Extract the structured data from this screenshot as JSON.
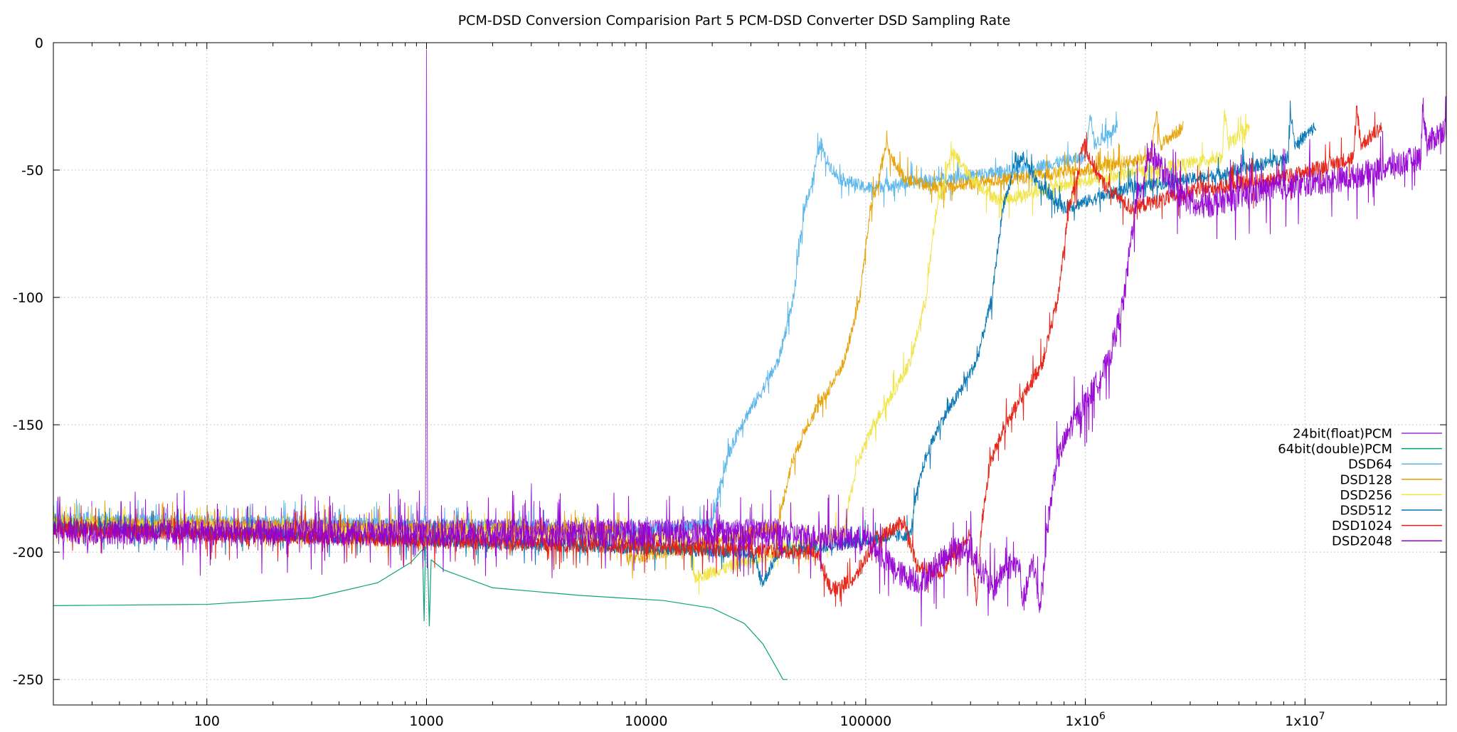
{
  "chart_data": {
    "type": "line",
    "title": "PCM-DSD Conversion Comparision Part 5 PCM-DSD Converter DSD Sampling Rate",
    "xlabel": "",
    "ylabel": "",
    "x_scale": "log",
    "xlim": [
      20,
      44000000
    ],
    "ylim": [
      -260,
      0
    ],
    "grid": true,
    "legend_position": "right, lower-middle",
    "x_ticks": [
      {
        "value": 100,
        "label": "100"
      },
      {
        "value": 1000,
        "label": "1000"
      },
      {
        "value": 10000,
        "label": "10000"
      },
      {
        "value": 100000,
        "label": "100000"
      },
      {
        "value": 1000000,
        "label": "1x10",
        "sup": "6"
      },
      {
        "value": 10000000,
        "label": "1x10",
        "sup": "7"
      }
    ],
    "y_ticks": [
      {
        "value": 0,
        "label": "0"
      },
      {
        "value": -50,
        "label": "-50"
      },
      {
        "value": -100,
        "label": "-100"
      },
      {
        "value": -150,
        "label": "-150"
      },
      {
        "value": -200,
        "label": "-200"
      },
      {
        "value": -250,
        "label": "-250"
      }
    ],
    "series": [
      {
        "name": "24bit(float)PCM",
        "color": "#9b30d9",
        "noise": 3,
        "points": [
          [
            20,
            -190
          ],
          [
            900,
            -190
          ],
          [
            990,
            -190
          ],
          [
            1000,
            0
          ],
          [
            1010,
            -190
          ],
          [
            2990,
            -190
          ],
          [
            3000,
            -163
          ],
          [
            3010,
            -190
          ],
          [
            20000,
            -190
          ],
          [
            40000,
            -190
          ]
        ]
      },
      {
        "name": "64bit(double)PCM",
        "color": "#009e73",
        "noise": 0,
        "points": [
          [
            20,
            -221
          ],
          [
            100,
            -220.5
          ],
          [
            300,
            -218
          ],
          [
            600,
            -212
          ],
          [
            850,
            -204
          ],
          [
            960,
            -199
          ],
          [
            975,
            -227
          ],
          [
            990,
            -198
          ],
          [
            1000,
            -198
          ],
          [
            1010,
            -199
          ],
          [
            1030,
            -229
          ],
          [
            1050,
            -203
          ],
          [
            1200,
            -207
          ],
          [
            2000,
            -214
          ],
          [
            5000,
            -217
          ],
          [
            12000,
            -219
          ],
          [
            20000,
            -222
          ],
          [
            28000,
            -228
          ],
          [
            34000,
            -236
          ],
          [
            39000,
            -245
          ],
          [
            42000,
            -250
          ],
          [
            44000,
            -250
          ]
        ]
      },
      {
        "name": "DSD64",
        "color": "#56b4e9",
        "noise": 2.5,
        "points": [
          [
            20,
            -187
          ],
          [
            4000,
            -190
          ],
          [
            4200,
            -195
          ],
          [
            20000,
            -189
          ],
          [
            21000,
            -180
          ],
          [
            23000,
            -165
          ],
          [
            27000,
            -150
          ],
          [
            33000,
            -138
          ],
          [
            40000,
            -125
          ],
          [
            47000,
            -100
          ],
          [
            50000,
            -80
          ],
          [
            53000,
            -63
          ],
          [
            57000,
            -55
          ],
          [
            60000,
            -45
          ],
          [
            62500,
            -39
          ],
          [
            65000,
            -45
          ],
          [
            75000,
            -53
          ],
          [
            100000,
            -57
          ],
          [
            200000,
            -54
          ],
          [
            500000,
            -50
          ],
          [
            1000000,
            -45
          ],
          [
            1050000,
            -27
          ],
          [
            1100000,
            -40
          ],
          [
            1400000,
            -33
          ]
        ]
      },
      {
        "name": "DSD128",
        "color": "#e69f00",
        "noise": 2.5,
        "points": [
          [
            20,
            -188
          ],
          [
            8000,
            -192
          ],
          [
            8200,
            -203
          ],
          [
            40000,
            -190
          ],
          [
            42000,
            -180
          ],
          [
            46000,
            -165
          ],
          [
            54000,
            -150
          ],
          [
            66000,
            -138
          ],
          [
            80000,
            -125
          ],
          [
            94000,
            -100
          ],
          [
            100000,
            -80
          ],
          [
            106000,
            -63
          ],
          [
            114000,
            -55
          ],
          [
            120000,
            -45
          ],
          [
            125000,
            -40
          ],
          [
            130000,
            -45
          ],
          [
            150000,
            -53
          ],
          [
            200000,
            -57
          ],
          [
            400000,
            -54
          ],
          [
            1000000,
            -50
          ],
          [
            2000000,
            -45
          ],
          [
            2100000,
            -27
          ],
          [
            2200000,
            -40
          ],
          [
            2800000,
            -33
          ]
        ]
      },
      {
        "name": "DSD256",
        "color": "#f0e442",
        "noise": 2.5,
        "points": [
          [
            20,
            -189
          ],
          [
            16000,
            -195
          ],
          [
            16500,
            -210
          ],
          [
            80000,
            -192
          ],
          [
            84000,
            -180
          ],
          [
            92000,
            -165
          ],
          [
            108000,
            -150
          ],
          [
            132000,
            -138
          ],
          [
            160000,
            -125
          ],
          [
            188000,
            -100
          ],
          [
            200000,
            -80
          ],
          [
            212000,
            -63
          ],
          [
            228000,
            -55
          ],
          [
            240000,
            -45
          ],
          [
            250000,
            -44
          ],
          [
            260000,
            -45
          ],
          [
            300000,
            -53
          ],
          [
            400000,
            -62
          ],
          [
            800000,
            -56
          ],
          [
            2000000,
            -50
          ],
          [
            4200000,
            -45
          ],
          [
            4300000,
            -27
          ],
          [
            4500000,
            -40
          ],
          [
            5600000,
            -33
          ]
        ]
      },
      {
        "name": "DSD512",
        "color": "#0072b2",
        "noise": 2.5,
        "points": [
          [
            20,
            -190
          ],
          [
            30000,
            -200
          ],
          [
            34000,
            -212
          ],
          [
            40000,
            -200
          ],
          [
            160000,
            -193
          ],
          [
            168000,
            -180
          ],
          [
            184000,
            -165
          ],
          [
            216000,
            -150
          ],
          [
            264000,
            -138
          ],
          [
            320000,
            -125
          ],
          [
            376000,
            -100
          ],
          [
            400000,
            -80
          ],
          [
            424000,
            -63
          ],
          [
            456000,
            -55
          ],
          [
            480000,
            -45
          ],
          [
            500000,
            -47
          ],
          [
            520000,
            -45
          ],
          [
            600000,
            -55
          ],
          [
            800000,
            -65
          ],
          [
            1600000,
            -57
          ],
          [
            4000000,
            -52
          ],
          [
            8400000,
            -45
          ],
          [
            8600000,
            -27
          ],
          [
            9000000,
            -40
          ],
          [
            11200000,
            -33
          ]
        ]
      },
      {
        "name": "DSD1024",
        "color": "#e51e10",
        "noise": 3,
        "points": [
          [
            20,
            -191
          ],
          [
            60000,
            -200
          ],
          [
            70000,
            -215
          ],
          [
            90000,
            -210
          ],
          [
            110000,
            -195
          ],
          [
            150000,
            -188
          ],
          [
            170000,
            -205
          ],
          [
            220000,
            -208
          ],
          [
            300000,
            -193
          ],
          [
            320000,
            -220
          ],
          [
            336000,
            -190
          ],
          [
            368000,
            -165
          ],
          [
            432000,
            -150
          ],
          [
            528000,
            -138
          ],
          [
            640000,
            -125
          ],
          [
            752000,
            -100
          ],
          [
            800000,
            -80
          ],
          [
            848000,
            -63
          ],
          [
            912000,
            -55
          ],
          [
            960000,
            -42
          ],
          [
            1000000,
            -39
          ],
          [
            1040000,
            -45
          ],
          [
            1200000,
            -55
          ],
          [
            1600000,
            -65
          ],
          [
            3200000,
            -58
          ],
          [
            8000000,
            -53
          ],
          [
            16800000,
            -45
          ],
          [
            17200000,
            -25
          ],
          [
            18000000,
            -40
          ],
          [
            22400000,
            -33
          ]
        ]
      },
      {
        "name": "DSD2048",
        "color": "#9400d3",
        "noise": 5,
        "points": [
          [
            20,
            -192
          ],
          [
            40000,
            -193
          ],
          [
            100000,
            -195
          ],
          [
            140000,
            -208
          ],
          [
            180000,
            -212
          ],
          [
            250000,
            -198
          ],
          [
            300000,
            -200
          ],
          [
            380000,
            -215
          ],
          [
            430000,
            -206
          ],
          [
            500000,
            -205
          ],
          [
            520000,
            -220
          ],
          [
            580000,
            -203
          ],
          [
            620000,
            -222
          ],
          [
            672000,
            -190
          ],
          [
            736000,
            -165
          ],
          [
            864000,
            -150
          ],
          [
            1056000,
            -138
          ],
          [
            1280000,
            -125
          ],
          [
            1504000,
            -100
          ],
          [
            1600000,
            -80
          ],
          [
            1696000,
            -63
          ],
          [
            1824000,
            -55
          ],
          [
            1920000,
            -45
          ],
          [
            2000000,
            -43
          ],
          [
            2080000,
            -45
          ],
          [
            2400000,
            -55
          ],
          [
            3200000,
            -65
          ],
          [
            6400000,
            -58
          ],
          [
            16000000,
            -53
          ],
          [
            33600000,
            -45
          ],
          [
            34400000,
            -25
          ],
          [
            36000000,
            -40
          ],
          [
            44000000,
            -33
          ]
        ]
      }
    ]
  }
}
